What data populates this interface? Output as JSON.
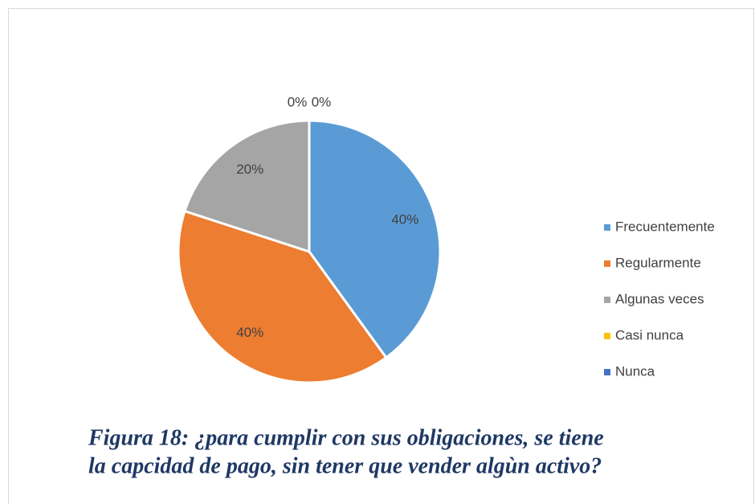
{
  "chart_data": {
    "type": "pie",
    "categories": [
      "Frecuentemente",
      "Regularmente",
      "Algunas veces",
      "Casi nunca",
      "Nunca"
    ],
    "values": [
      40,
      40,
      20,
      0,
      0
    ],
    "value_labels": [
      "40%",
      "40%",
      "20%",
      "0%",
      "0%"
    ],
    "colors": [
      "#5b9bd5",
      "#ed7d31",
      "#a5a5a5",
      "#ffc000",
      "#4472c4"
    ],
    "legend": "right",
    "caption": [
      "Figura 18: ¿para cumplir con sus obligaciones, se tiene",
      "la capcidad de pago, sin tener que vender algùn activo?"
    ]
  }
}
